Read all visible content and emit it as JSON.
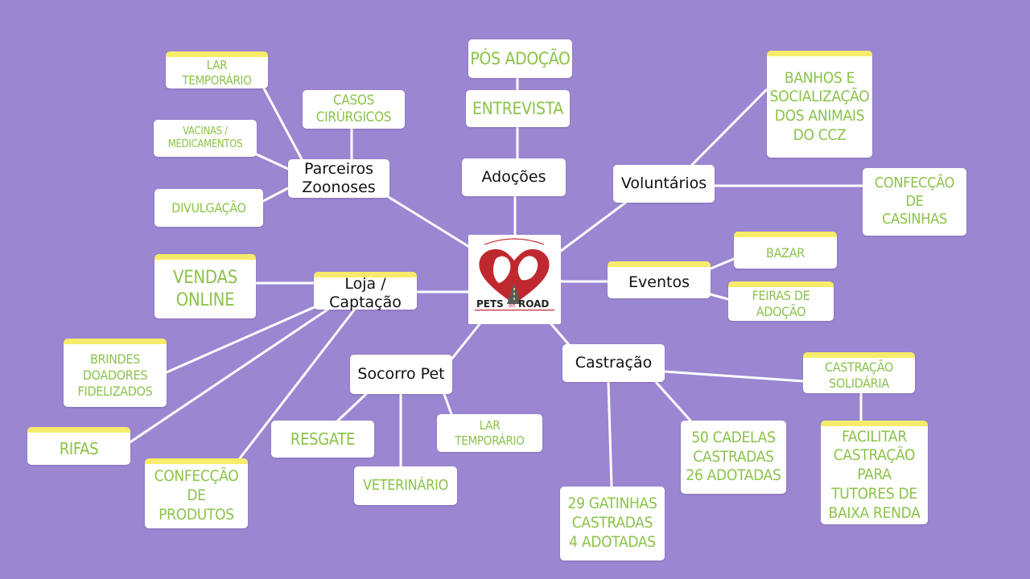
{
  "center": {
    "logo_text_left": "PETS",
    "logo_text_mid": "on",
    "logo_text_right": "ROAD"
  },
  "branches": {
    "adocoes": {
      "label": "Adoções",
      "children": [
        "ENTREVISTA",
        "PÓS ADOÇÃO"
      ]
    },
    "voluntarios": {
      "label": "Voluntários",
      "children": [
        "BANHOS E\nSOCIALIZAÇÃO\nDOS ANIMAIS\nDO CCZ",
        "CONFECÇÃO\nDE\nCASINHAS"
      ]
    },
    "eventos": {
      "label": "Eventos",
      "children": [
        "BAZAR",
        "FEIRAS DE\nADOÇÃO"
      ]
    },
    "castracao": {
      "label": "Castração",
      "children": [
        "CASTRAÇÃO\nSOLIDÁRIA",
        "FACILITAR\nCASTRAÇÃO PARA\nTUTORES DE\nBAIXA RENDA",
        "50 CADELAS\nCASTRADAS\n26 ADOTADAS",
        "29 GATINHAS\nCASTRADAS\n4 ADOTADAS"
      ]
    },
    "socorro": {
      "label": "Socorro Pet",
      "children": [
        "RESGATE",
        "VETERINÁRIO",
        "LAR\nTEMPORÁRIO"
      ]
    },
    "loja": {
      "label": "Loja /\nCaptação",
      "children": [
        "VENDAS\nONLINE",
        "BRINDES\nDOADORES\nFIDELIZADOS",
        "RIFAS",
        "CONFECÇÃO DE\nPRODUTOS"
      ]
    },
    "parceiros": {
      "label": "Parceiros\nZoonoses",
      "children": [
        "LAR\nTEMPORÁRIO",
        "CASOS\nCIRÚRGICOS",
        "VACINAS /\nMEDICAMENTOS",
        "DIVULGAÇÃO"
      ]
    }
  },
  "colors": {
    "background": "#9b86d2",
    "node": "#ffffff",
    "main_text": "#111111",
    "sub_text": "#8bc34a",
    "tab": "#f7ec6a",
    "logo_red": "#c0282f"
  }
}
